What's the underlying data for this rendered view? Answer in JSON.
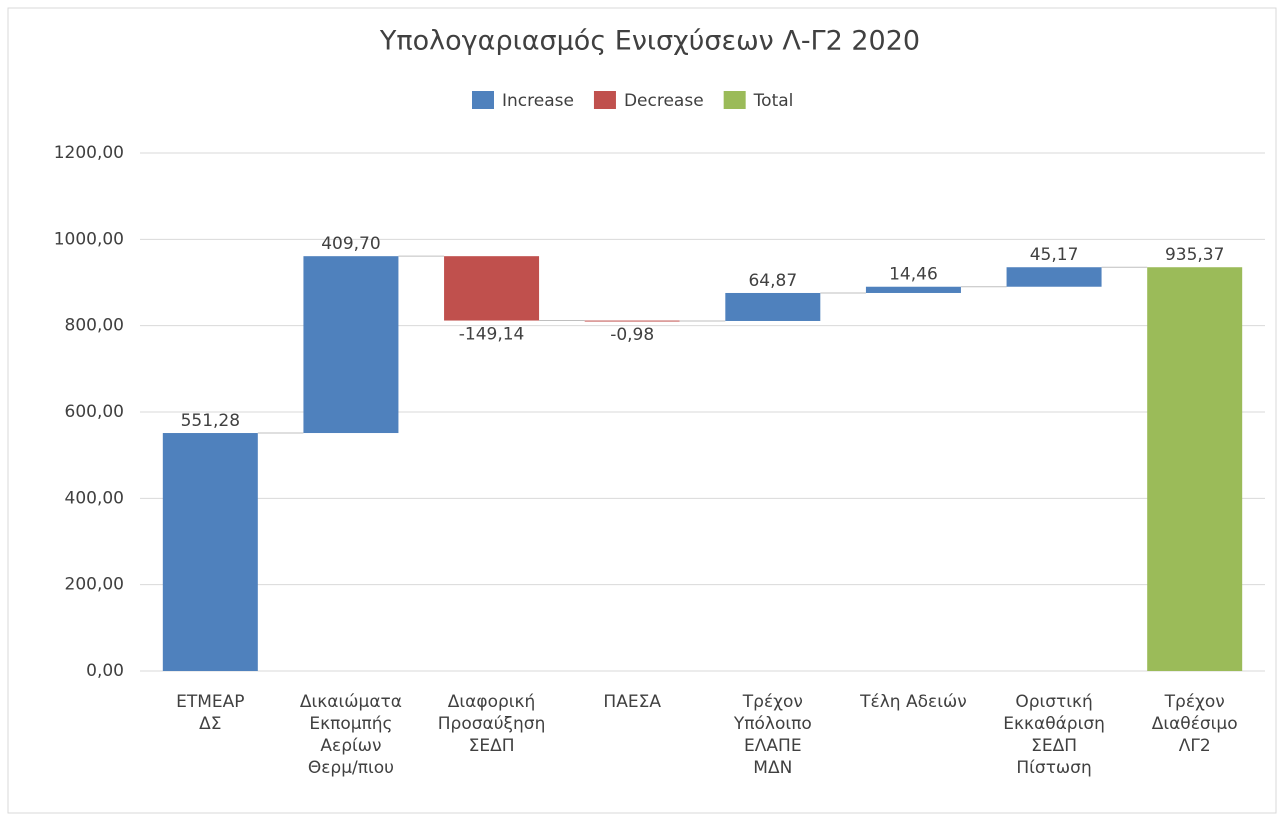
{
  "chart_data": {
    "type": "waterfall",
    "title": "Υπολογαριασμός Ενισχύσεων Λ-Γ2 2020",
    "categories": [
      "ΕΤΜΕΑΡ\nΔΣ",
      "Δικαιώματα\nΕκπομπής\nΑερίων\nΘερμ/πιου",
      "Διαφορική\nΠροσαύξηση\nΣΕΔΠ",
      "ΠΑΕΣΑ",
      "Τρέχον\nΥπόλοιπο\nΕΛΑΠΕ\nΜΔΝ",
      "Τέλη Αδειών",
      "Οριστική\nΕκκαθάριση\nΣΕΔΠ\nΠίστωση",
      "Τρέχον\nΔιαθέσιμο\nΛΓ2"
    ],
    "values": [
      551.28,
      409.7,
      -149.14,
      -0.98,
      64.87,
      14.46,
      45.17,
      935.37
    ],
    "value_labels": [
      "551,28",
      "409,70",
      "-149,14",
      "-0,98",
      "64,87",
      "14,46",
      "45,17",
      "935,37"
    ],
    "totals": [
      7
    ],
    "legend": [
      {
        "name": "Increase",
        "color": "#4f81bd"
      },
      {
        "name": "Decrease",
        "color": "#c0504d"
      },
      {
        "name": "Total",
        "color": "#9bbb59"
      }
    ],
    "ylim": [
      0,
      1200
    ],
    "yticks": [
      {
        "value": 0,
        "label": "0,00"
      },
      {
        "value": 200,
        "label": "200,00"
      },
      {
        "value": 400,
        "label": "400,00"
      },
      {
        "value": 600,
        "label": "600,00"
      },
      {
        "value": 800,
        "label": "800,00"
      },
      {
        "value": 1000,
        "label": "1000,00"
      },
      {
        "value": 1200,
        "label": "1200,00"
      }
    ],
    "grid": true
  }
}
